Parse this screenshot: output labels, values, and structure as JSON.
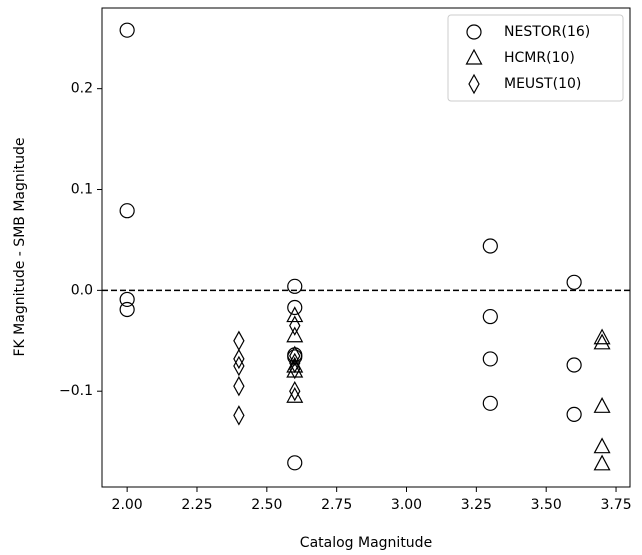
{
  "chart_data": {
    "type": "scatter",
    "x_label": "Catalog Magnitude",
    "y_label": "FK Magnitude - SMB Magnitude",
    "xlim": [
      1.91,
      3.8
    ],
    "ylim": [
      -0.195,
      0.28
    ],
    "xticks": [
      {
        "value": 2.0,
        "label": "2.00"
      },
      {
        "value": 2.25,
        "label": "2.25"
      },
      {
        "value": 2.5,
        "label": "2.50"
      },
      {
        "value": 2.75,
        "label": "2.75"
      },
      {
        "value": 3.0,
        "label": "3.00"
      },
      {
        "value": 3.25,
        "label": "3.25"
      },
      {
        "value": 3.5,
        "label": "3.50"
      },
      {
        "value": 3.75,
        "label": "3.75"
      }
    ],
    "yticks": [
      {
        "value": -0.1,
        "label": "−0.1"
      },
      {
        "value": 0,
        "label": "0.0"
      },
      0.1,
      0.2
    ],
    "reference_line": 0,
    "legend": "upper right",
    "series": [
      {
        "name": "NESTOR(16)",
        "marker": "circle",
        "color": "#000000",
        "x": [
          2.0,
          2.0,
          2.0,
          2.0,
          2.6,
          2.6,
          2.6,
          2.6,
          2.6,
          3.3,
          3.3,
          3.3,
          3.3,
          3.6,
          3.6,
          3.6
        ],
        "values": [
          0.258,
          0.079,
          -0.009,
          -0.019,
          0.004,
          -0.017,
          -0.064,
          -0.066,
          -0.171,
          0.044,
          -0.026,
          -0.068,
          -0.112,
          0.008,
          -0.074,
          -0.123
        ]
      },
      {
        "name": "HCMR(10)",
        "marker": "triangle",
        "color": "#000000",
        "x": [
          2.6,
          2.6,
          2.6,
          2.6,
          2.6,
          3.7,
          3.7,
          3.7,
          3.7,
          3.7
        ],
        "values": [
          -0.025,
          -0.045,
          -0.075,
          -0.08,
          -0.105,
          -0.047,
          -0.052,
          -0.115,
          -0.155,
          -0.172
        ]
      },
      {
        "name": "MEUST(10)",
        "marker": "diamond",
        "color": "#000000",
        "x": [
          2.4,
          2.4,
          2.4,
          2.4,
          2.4,
          2.6,
          2.6,
          2.6,
          2.6,
          2.6
        ],
        "values": [
          -0.05,
          -0.068,
          -0.075,
          -0.095,
          -0.124,
          -0.035,
          -0.065,
          -0.072,
          -0.078,
          -0.1
        ]
      }
    ]
  }
}
